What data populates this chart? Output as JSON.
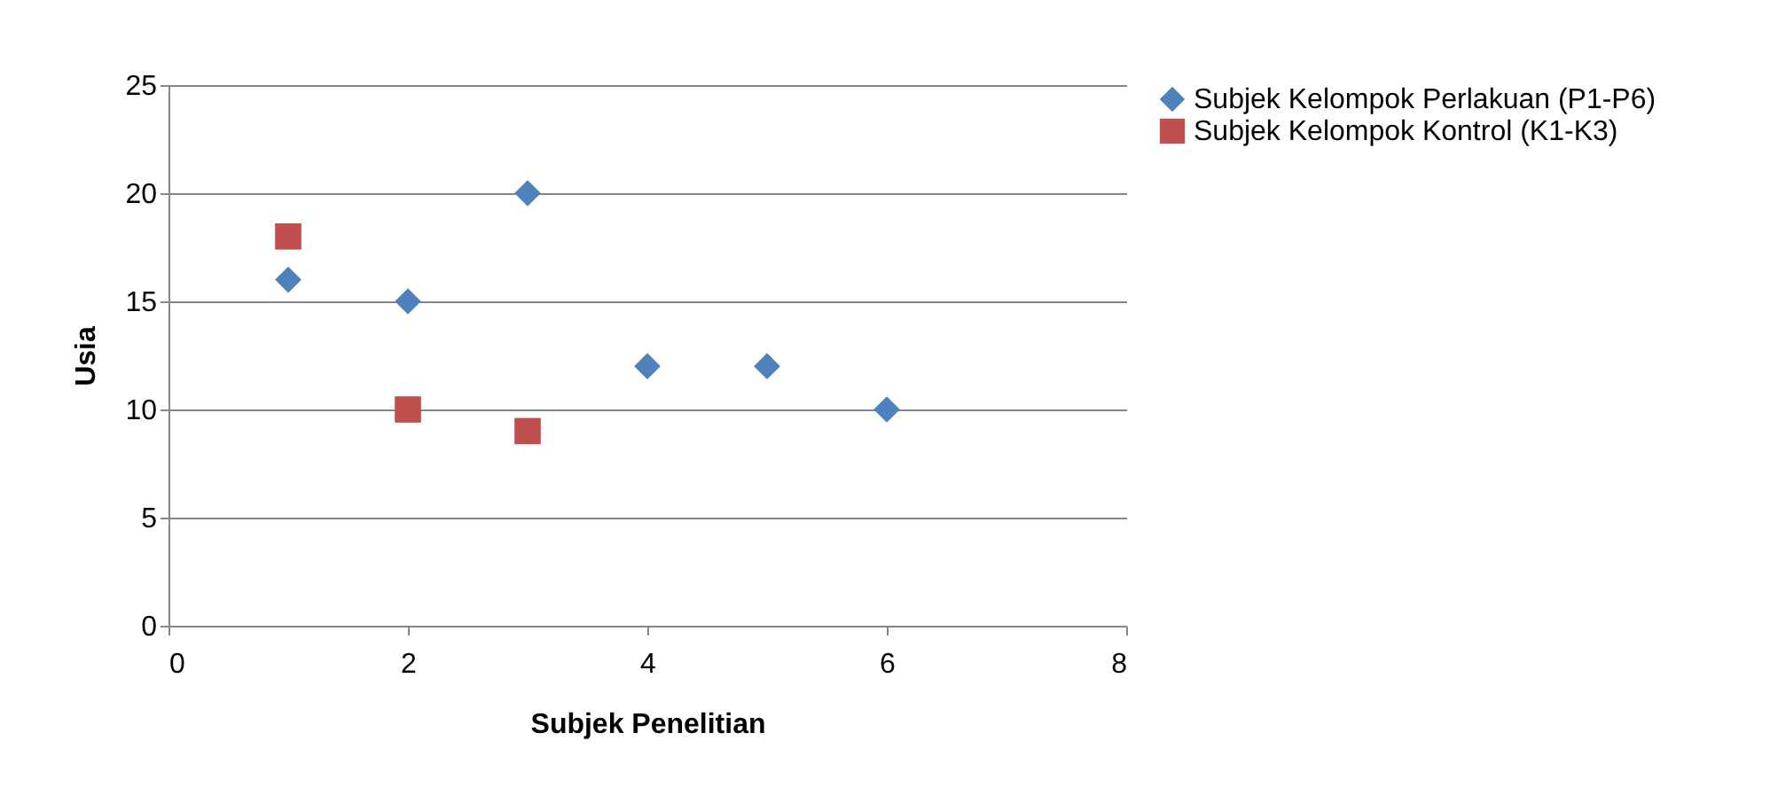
{
  "chart_data": {
    "type": "scatter",
    "xlabel": "Subjek Penelitian",
    "ylabel": "Usia",
    "xlim": [
      0,
      8
    ],
    "xticks": [
      0,
      2,
      4,
      6,
      8
    ],
    "ylim": [
      0,
      25
    ],
    "yticks": [
      0,
      5,
      10,
      15,
      20,
      25
    ],
    "grid": "y",
    "legend": "right",
    "series": [
      {
        "name": "Subjek Kelompok Perlakuan (P1-P6)",
        "color": "#4f81bd",
        "marker": "diamond",
        "x": [
          1,
          2,
          3,
          4,
          5,
          6
        ],
        "values": [
          16,
          15,
          20,
          12,
          12,
          10
        ]
      },
      {
        "name": "Subjek Kelompok Kontrol (K1-K3)",
        "color": "#c0504d",
        "marker": "square",
        "x": [
          1,
          2,
          3
        ],
        "values": [
          18,
          10,
          9
        ]
      }
    ]
  }
}
